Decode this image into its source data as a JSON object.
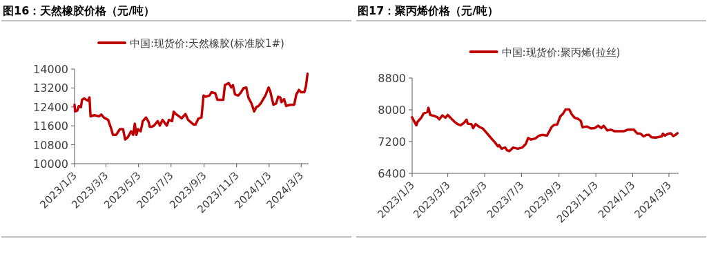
{
  "chart_data": [
    {
      "type": "line",
      "title": "图16：天然橡胶价格（元/吨）",
      "legend": "top",
      "x": [
        "2023-01-03",
        "2023-01-04",
        "2023-01-08",
        "2023-01-11",
        "2023-01-15",
        "2023-01-17",
        "2023-01-21",
        "2023-01-28",
        "2023-01-31",
        "2023-02-02",
        "2023-02-09",
        "2023-02-18",
        "2023-02-22",
        "2023-02-27",
        "2023-03-07",
        "2023-03-12",
        "2023-03-16",
        "2023-03-22",
        "2023-03-29",
        "2023-04-04",
        "2023-04-08",
        "2023-04-13",
        "2023-04-19",
        "2023-04-23",
        "2023-04-26",
        "2023-04-29",
        "2023-05-02",
        "2023-05-07",
        "2023-05-11",
        "2023-05-17",
        "2023-05-22",
        "2023-05-24",
        "2023-05-28",
        "2023-06-01",
        "2023-06-08",
        "2023-06-12",
        "2023-06-17",
        "2023-06-25",
        "2023-06-29",
        "2023-07-05",
        "2023-07-08",
        "2023-07-12",
        "2023-07-17",
        "2023-07-23",
        "2023-07-30",
        "2023-08-04",
        "2023-08-14",
        "2023-08-18",
        "2023-08-23",
        "2023-08-29",
        "2023-09-02",
        "2023-09-06",
        "2023-09-13",
        "2023-09-17",
        "2023-09-24",
        "2023-09-28",
        "2023-10-04",
        "2023-10-09",
        "2023-10-12",
        "2023-10-19",
        "2023-10-24",
        "2023-10-27",
        "2023-10-31",
        "2023-11-06",
        "2023-11-10",
        "2023-11-16",
        "2023-11-21",
        "2023-11-25",
        "2023-12-01",
        "2023-12-06",
        "2023-12-10",
        "2023-12-14",
        "2023-12-19",
        "2023-12-23",
        "2023-12-27",
        "2024-01-02",
        "2024-01-05",
        "2024-01-11",
        "2024-01-16",
        "2024-01-20",
        "2024-01-24",
        "2024-01-26",
        "2024-01-31",
        "2024-02-04",
        "2024-02-11",
        "2024-02-19",
        "2024-02-23",
        "2024-02-28",
        "2024-03-03",
        "2024-03-09",
        "2024-03-12",
        "2024-03-15"
      ],
      "series": [
        {
          "name": "中国:现货价:天然橡胶(标准胶1#)",
          "color": "#c00000",
          "values": [
            12490,
            12210,
            12240,
            12440,
            12390,
            12700,
            12760,
            12660,
            12800,
            12000,
            12050,
            12000,
            12080,
            11950,
            11850,
            11530,
            11220,
            11220,
            11460,
            11460,
            11020,
            11120,
            11370,
            11220,
            11690,
            11220,
            11460,
            11370,
            11800,
            11950,
            11760,
            11560,
            11560,
            11610,
            11800,
            11610,
            11850,
            11610,
            11850,
            11800,
            12200,
            12100,
            12020,
            11920,
            12100,
            11850,
            11660,
            11660,
            11900,
            11950,
            12880,
            12830,
            12880,
            13020,
            12980,
            12700,
            12700,
            12700,
            13320,
            13410,
            13220,
            13320,
            12930,
            12880,
            12980,
            13190,
            13220,
            12800,
            12540,
            12210,
            12390,
            12440,
            12570,
            12730,
            12880,
            13220,
            13070,
            12490,
            12540,
            12830,
            12800,
            12600,
            12730,
            12440,
            12490,
            12490,
            12930,
            13120,
            13020,
            13020,
            13270,
            13800
          ]
        }
      ],
      "xlim": [
        "2023-01-03",
        "2024-03-17"
      ],
      "ylim": [
        10000,
        14000
      ],
      "yticks": [
        10000,
        10800,
        11600,
        12400,
        13200,
        14000
      ],
      "xticks": [
        {
          "value": "2023-01-03",
          "label": "2023/1/3"
        },
        {
          "value": "2023-03-03",
          "label": "2023/3/3"
        },
        {
          "value": "2023-05-03",
          "label": "2023/5/3"
        },
        {
          "value": "2023-07-03",
          "label": "2023/7/3"
        },
        {
          "value": "2023-09-03",
          "label": "2023/9/3"
        },
        {
          "value": "2023-11-03",
          "label": "2023/11/3"
        },
        {
          "value": "2024-01-03",
          "label": "2024/1/3"
        },
        {
          "value": "2024-03-03",
          "label": "2024/3/3"
        }
      ]
    },
    {
      "type": "line",
      "title": "图17：聚丙烯价格（元/吨）",
      "legend": "top",
      "x": [
        "2023-01-03",
        "2023-01-06",
        "2023-01-10",
        "2023-01-12",
        "2023-01-18",
        "2023-01-22",
        "2023-01-28",
        "2023-01-30",
        "2023-02-02",
        "2023-02-08",
        "2023-02-14",
        "2023-02-17",
        "2023-02-22",
        "2023-02-27",
        "2023-03-03",
        "2023-03-08",
        "2023-03-14",
        "2023-03-19",
        "2023-03-24",
        "2023-03-29",
        "2023-04-03",
        "2023-04-05",
        "2023-04-11",
        "2023-04-14",
        "2023-04-18",
        "2023-04-24",
        "2023-04-30",
        "2023-05-04",
        "2023-05-08",
        "2023-05-14",
        "2023-05-20",
        "2023-05-25",
        "2023-05-27",
        "2023-05-31",
        "2023-06-06",
        "2023-06-09",
        "2023-06-13",
        "2023-06-19",
        "2023-06-27",
        "2023-07-04",
        "2023-07-10",
        "2023-07-14",
        "2023-07-19",
        "2023-07-26",
        "2023-08-01",
        "2023-08-07",
        "2023-08-14",
        "2023-08-18",
        "2023-08-22",
        "2023-08-26",
        "2023-08-31",
        "2023-09-05",
        "2023-09-10",
        "2023-09-14",
        "2023-09-20",
        "2023-09-24",
        "2023-09-29",
        "2023-10-05",
        "2023-10-09",
        "2023-10-12",
        "2023-10-19",
        "2023-10-26",
        "2023-11-01",
        "2023-11-07",
        "2023-11-12",
        "2023-11-16",
        "2023-11-22",
        "2023-11-28",
        "2023-12-04",
        "2023-12-19",
        "2023-12-26",
        "2024-01-05",
        "2024-01-10",
        "2024-01-16",
        "2024-01-21",
        "2024-01-26",
        "2024-01-30",
        "2024-02-03",
        "2024-02-10",
        "2024-02-20",
        "2024-02-22",
        "2024-02-25",
        "2024-03-02",
        "2024-03-06",
        "2024-03-10",
        "2024-03-14",
        "2024-03-17"
      ],
      "series": [
        {
          "name": "中国:现货价:聚丙烯(拉丝)",
          "color": "#c00000",
          "values": [
            7810,
            7720,
            7610,
            7700,
            7800,
            7910,
            7940,
            8050,
            7870,
            7850,
            7810,
            7760,
            7860,
            7800,
            7870,
            7790,
            7700,
            7640,
            7610,
            7660,
            7750,
            7650,
            7640,
            7540,
            7640,
            7570,
            7530,
            7460,
            7390,
            7280,
            7180,
            7080,
            7110,
            7020,
            7050,
            6980,
            6960,
            7050,
            7020,
            7050,
            7140,
            7290,
            7250,
            7280,
            7350,
            7370,
            7350,
            7460,
            7570,
            7620,
            7630,
            7830,
            7910,
            8010,
            8010,
            7890,
            7800,
            7770,
            7720,
            7560,
            7580,
            7530,
            7540,
            7600,
            7540,
            7600,
            7480,
            7500,
            7460,
            7460,
            7500,
            7500,
            7410,
            7400,
            7330,
            7370,
            7370,
            7310,
            7300,
            7330,
            7400,
            7350,
            7400,
            7410,
            7340,
            7370,
            7410
          ]
        }
      ],
      "xlim": [
        "2023-01-03",
        "2024-03-19"
      ],
      "ylim": [
        6400,
        8800
      ],
      "yticks": [
        6400,
        7200,
        8000,
        8800
      ],
      "xticks": [
        {
          "value": "2023-01-03",
          "label": "2023/1/3"
        },
        {
          "value": "2023-03-03",
          "label": "2023/3/3"
        },
        {
          "value": "2023-05-03",
          "label": "2023/5/3"
        },
        {
          "value": "2023-07-03",
          "label": "2023/7/3"
        },
        {
          "value": "2023-09-03",
          "label": "2023/9/3"
        },
        {
          "value": "2023-11-03",
          "label": "2023/11/3"
        },
        {
          "value": "2024-01-03",
          "label": "2024/1/3"
        },
        {
          "value": "2024-03-03",
          "label": "2024/3/3"
        }
      ]
    }
  ]
}
